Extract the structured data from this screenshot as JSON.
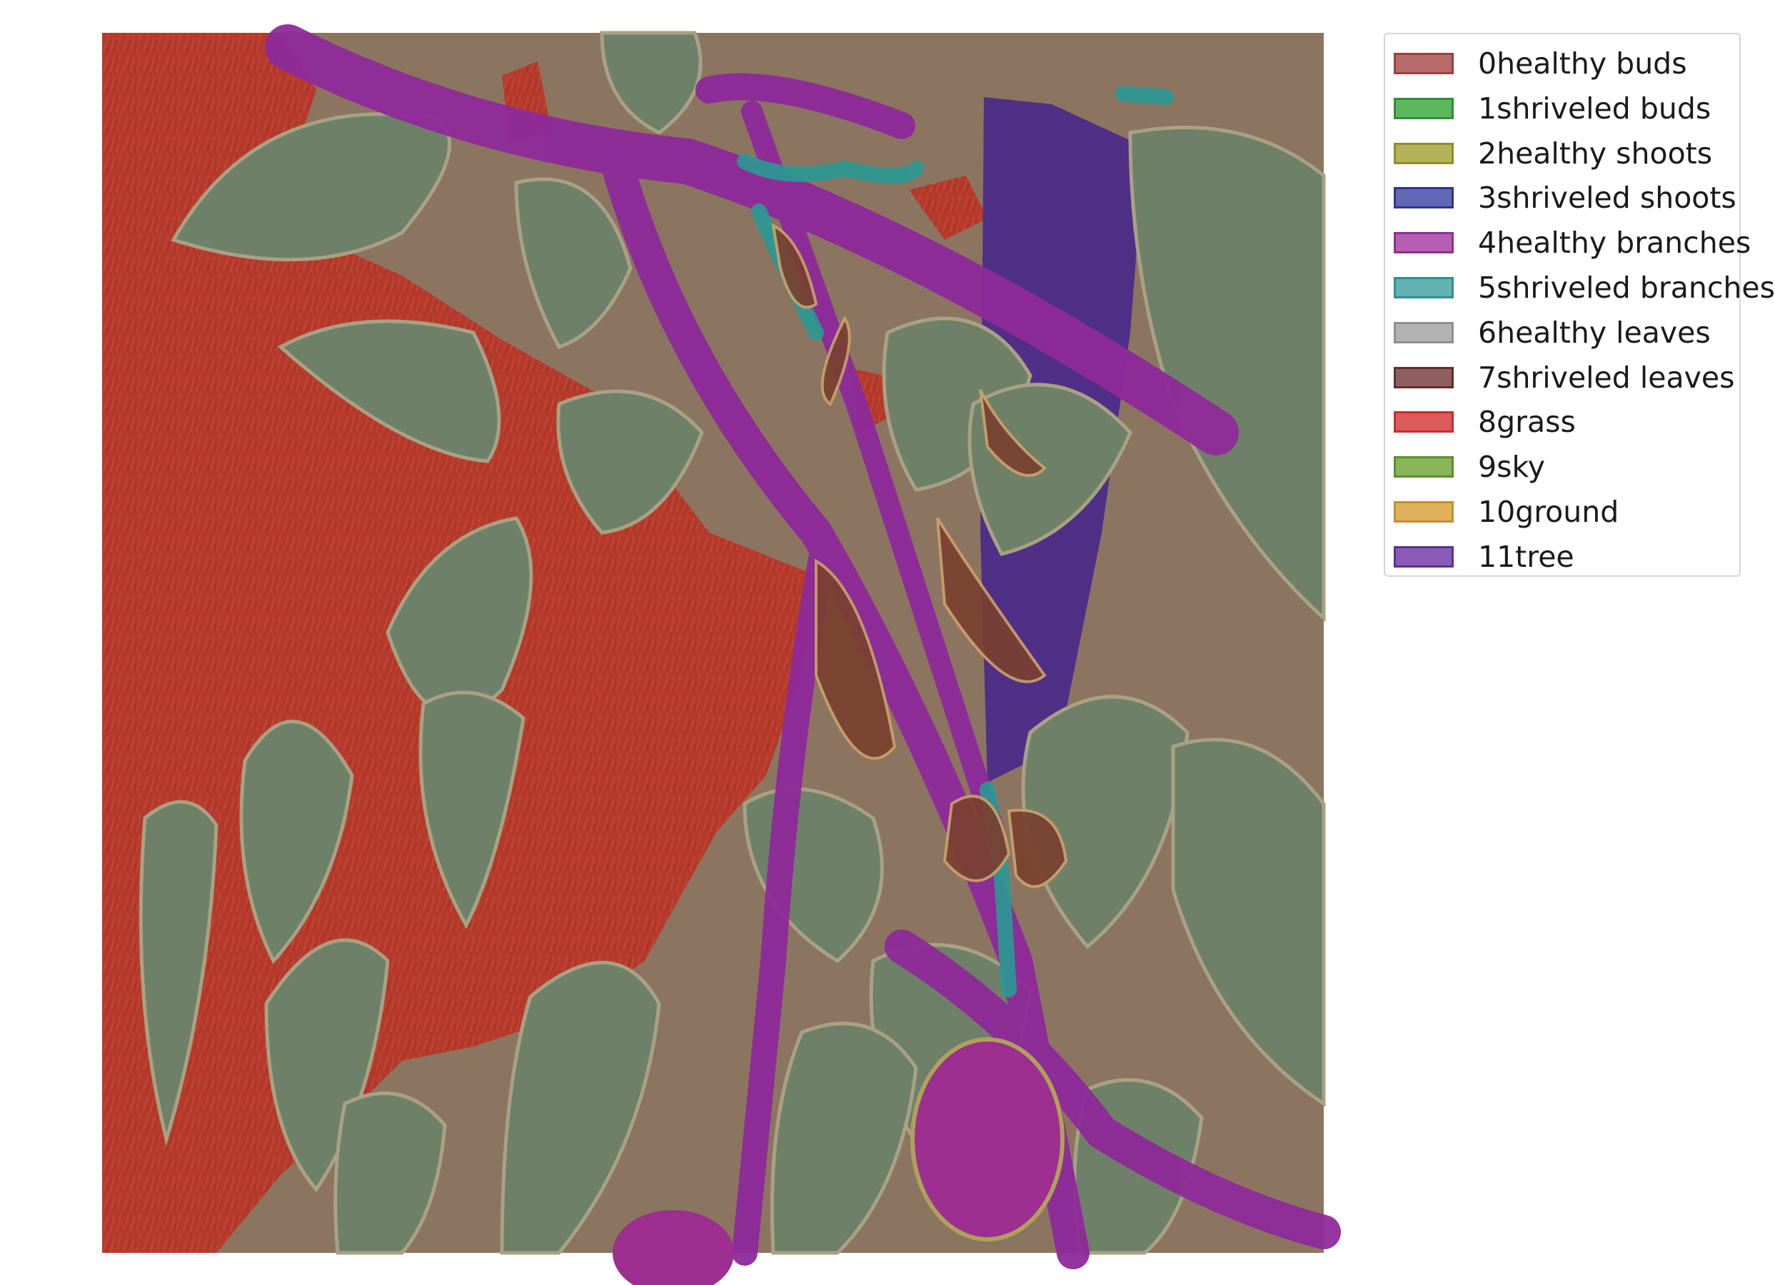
{
  "legend": {
    "items": [
      {
        "label": "0healthy buds",
        "fill": "#b86b6b",
        "edge": "#9b3f3f"
      },
      {
        "label": "1shriveled buds",
        "fill": "#5cb85c",
        "edge": "#2f8f2f"
      },
      {
        "label": "2healthy shoots",
        "fill": "#b5b35a",
        "edge": "#8f8d2a"
      },
      {
        "label": "3shriveled shoots",
        "fill": "#6368b6",
        "edge": "#2f348f"
      },
      {
        "label": "4healthy branches",
        "fill": "#b45eb4",
        "edge": "#8f2f8f"
      },
      {
        "label": "5shriveled branches",
        "fill": "#63b3b3",
        "edge": "#2f8f8f"
      },
      {
        "label": "6healthy leaves",
        "fill": "#b3b3b3",
        "edge": "#8f8f8f"
      },
      {
        "label": "7shriveled leaves",
        "fill": "#8f5f5f",
        "edge": "#5e2f2f"
      },
      {
        "label": "8grass",
        "fill": "#db5a5a",
        "edge": "#c22f2f"
      },
      {
        "label": "9sky",
        "fill": "#86b55a",
        "edge": "#5a8f2f"
      },
      {
        "label": "10ground",
        "fill": "#deb15a",
        "edge": "#c28f2f"
      },
      {
        "label": "11tree",
        "fill": "#8a5ab6",
        "edge": "#5e2f8f"
      }
    ]
  },
  "colors": {
    "grass": "#b63a2c",
    "leaves": "#6f8069",
    "branches": "#8f2a9a",
    "tree": "#4a2a8a",
    "shriveled_branches": "#2a9a94",
    "shriveled_leaves": "#7a4030",
    "ground": "#8c7560"
  }
}
